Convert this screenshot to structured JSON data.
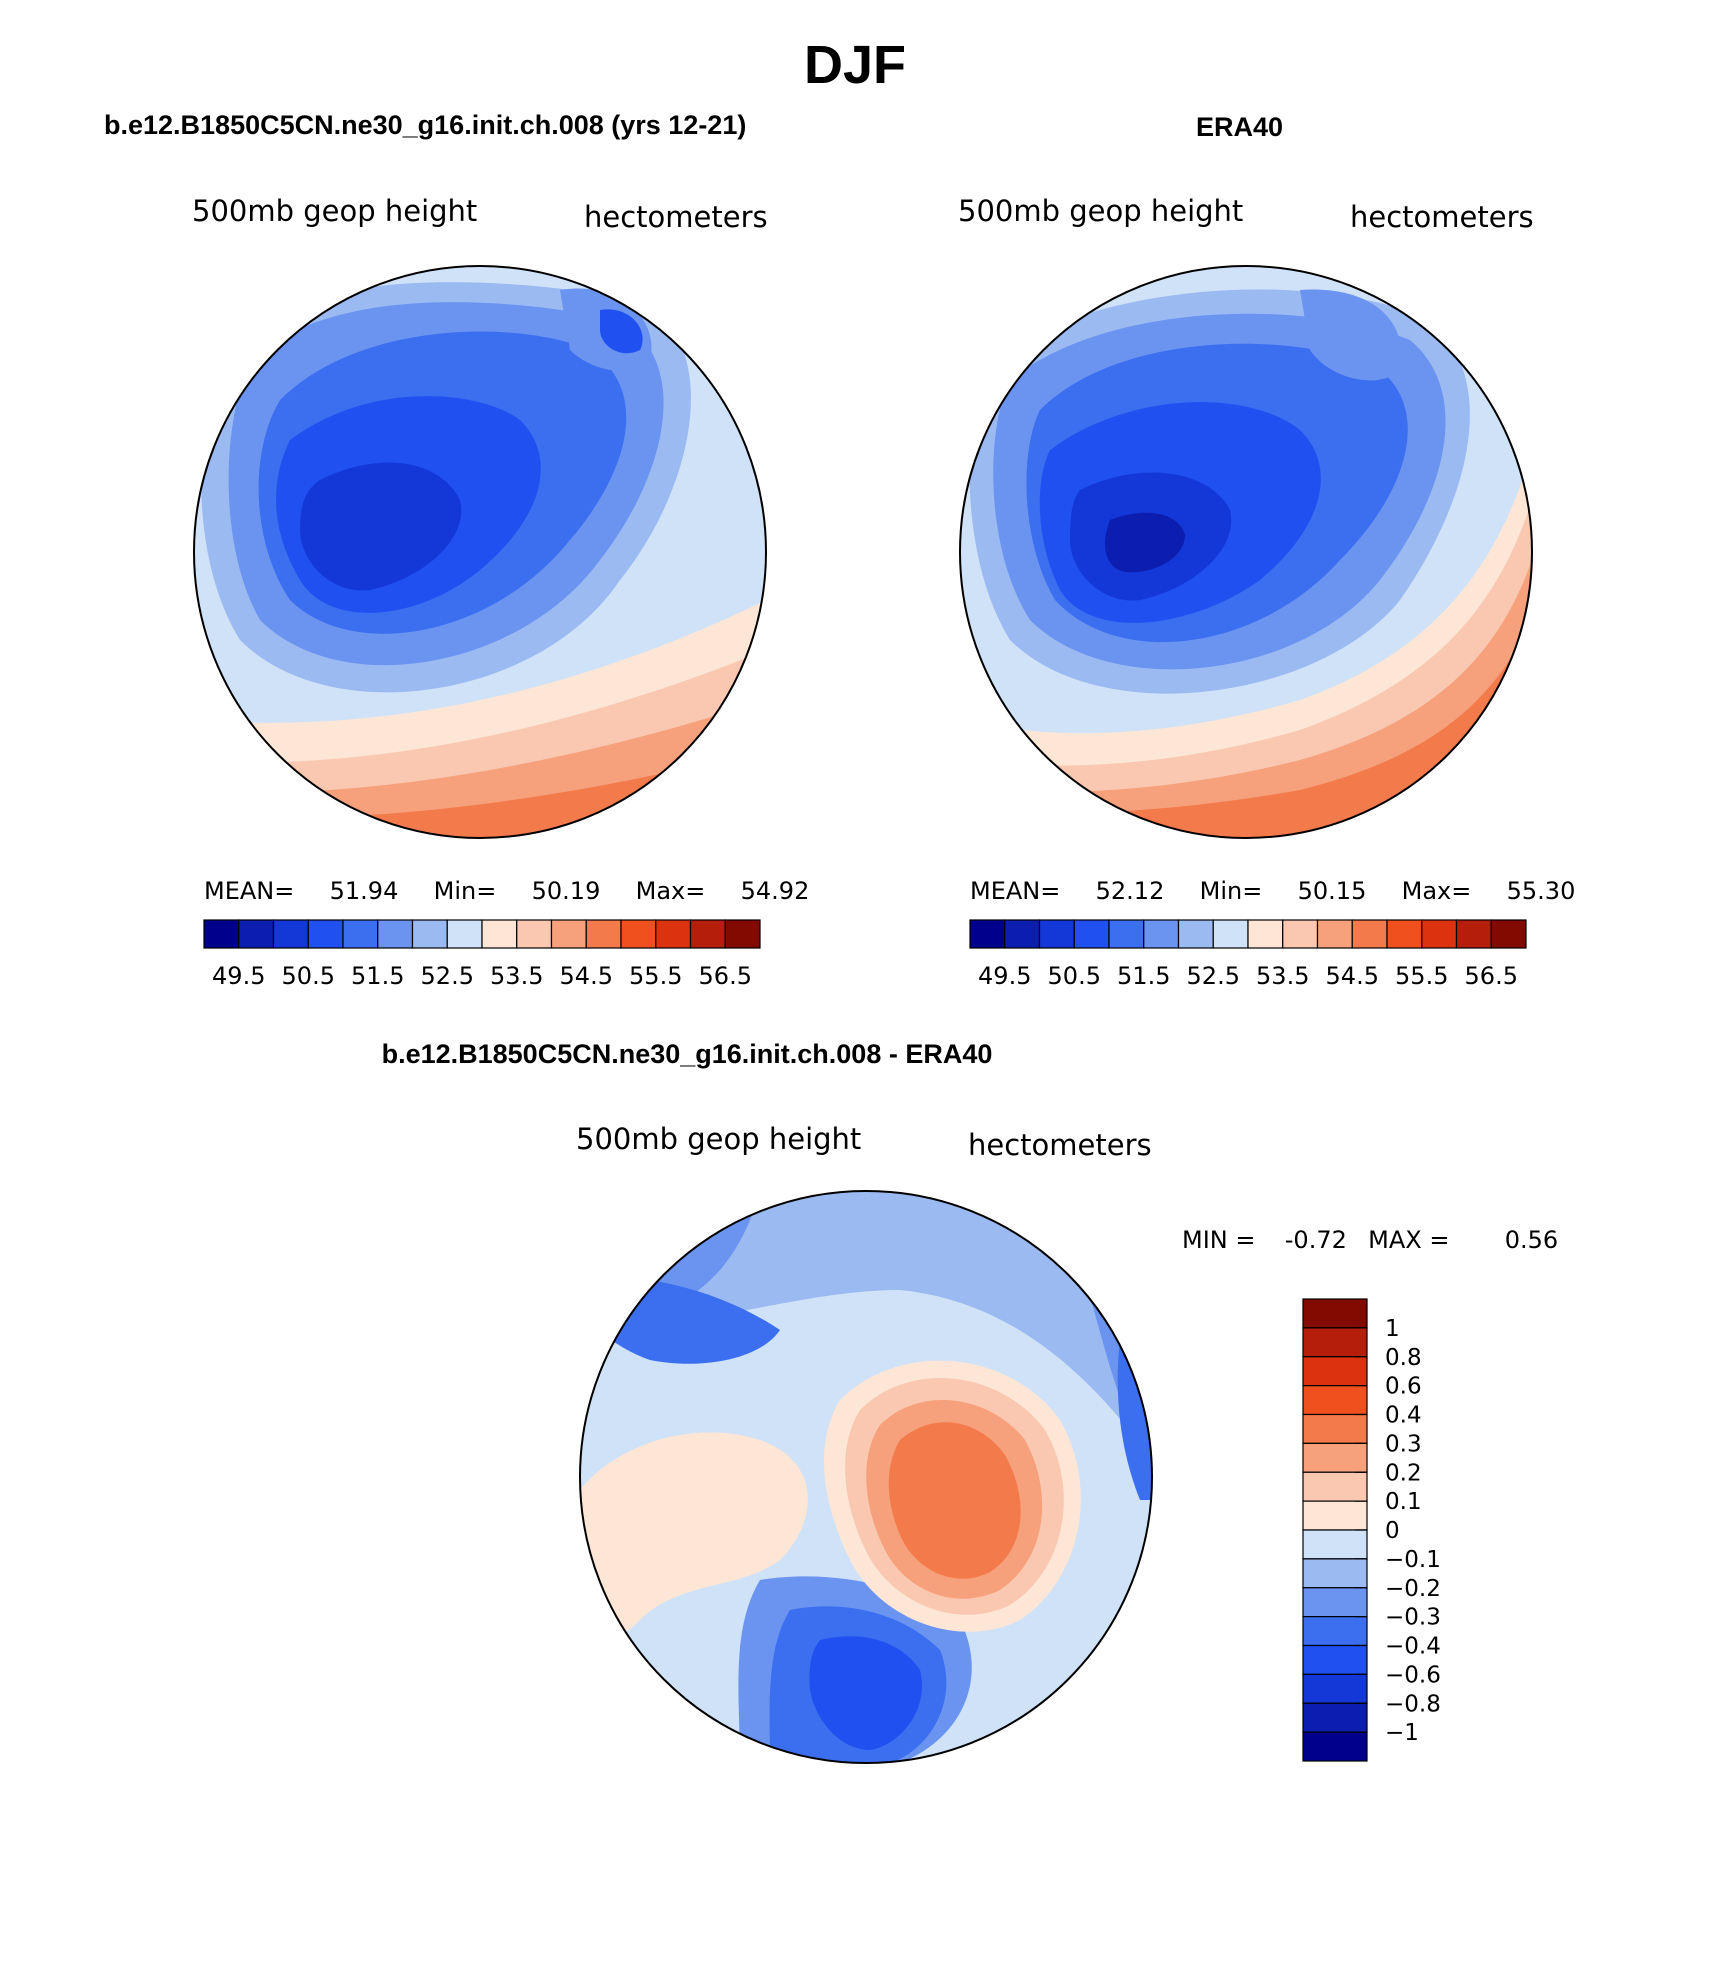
{
  "title": "DJF",
  "palettes": {
    "absolute": [
      "#00008c",
      "#0c1eb0",
      "#1438d8",
      "#2050f0",
      "#3c6ef0",
      "#6a94f0",
      "#9cbaf2",
      "#cfe2f8",
      "#fde6d6",
      "#fac8b0",
      "#f6a07c",
      "#f37a4a",
      "#f0501e",
      "#dc3210",
      "#b41e0a",
      "#820a00"
    ],
    "difference": [
      "#820a00",
      "#b41e0a",
      "#dc3210",
      "#f0501e",
      "#f37a4a",
      "#f6a07c",
      "#fac8b0",
      "#fde6d6",
      "#cfe2f8",
      "#9cbaf2",
      "#6a94f0",
      "#3c6ef0",
      "#2050f0",
      "#1438d8",
      "#0c1eb0",
      "#00008c"
    ]
  },
  "panels": [
    {
      "header": "b.e12.B1850C5CN.ne30_g16.init.ch.008 (yrs 12-21)",
      "variable": "500mb geop height",
      "units": "hectometers",
      "stats": {
        "mean_label": "MEAN=",
        "mean": "51.94",
        "min_label": "Min=",
        "min": "50.19",
        "max_label": "Max=",
        "max": "54.92"
      },
      "colorbar_labels": [
        "49.5",
        "50.5",
        "51.5",
        "52.5",
        "53.5",
        "54.5",
        "55.5",
        "56.5"
      ]
    },
    {
      "header": "ERA40",
      "variable": "500mb geop height",
      "units": "hectometers",
      "stats": {
        "mean_label": "MEAN=",
        "mean": "52.12",
        "min_label": "Min=",
        "min": "50.15",
        "max_label": "Max=",
        "max": "55.30"
      },
      "colorbar_labels": [
        "49.5",
        "50.5",
        "51.5",
        "52.5",
        "53.5",
        "54.5",
        "55.5",
        "56.5"
      ]
    },
    {
      "header": "b.e12.B1850C5CN.ne30_g16.init.ch.008 - ERA40",
      "variable": "500mb geop height",
      "units": "hectometers",
      "stats": {
        "min_label": "MIN =",
        "min": "-0.72",
        "max_label": "MAX =",
        "max": "0.56"
      },
      "colorbar_labels": [
        "1",
        "0.8",
        "0.6",
        "0.4",
        "0.3",
        "0.2",
        "0.1",
        "0",
        "-0.1",
        "-0.2",
        "-0.3",
        "-0.4",
        "-0.6",
        "-0.8",
        "-1"
      ]
    }
  ]
}
